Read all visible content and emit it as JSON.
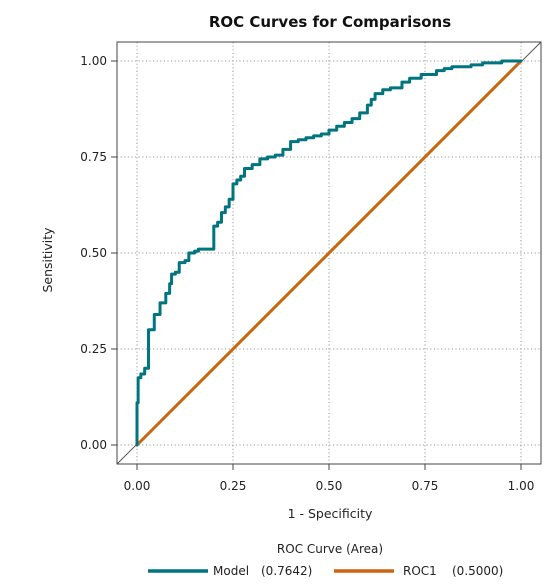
{
  "chart_data": {
    "type": "line",
    "title": "ROC Curves for Comparisons",
    "xlabel": "1 - Specificity",
    "ylabel": "Sensitivity",
    "xlim": [
      0,
      1
    ],
    "ylim": [
      0,
      1
    ],
    "xticks": [
      "0.00",
      "0.25",
      "0.50",
      "0.75",
      "1.00"
    ],
    "yticks": [
      "0.00",
      "0.25",
      "0.50",
      "0.75",
      "1.00"
    ],
    "grid": true,
    "legend_title": "ROC Curve (Area)",
    "legend_position": "bottom",
    "series": [
      {
        "name": "Model",
        "area_label": "(0.7642)",
        "color": "#00747f",
        "x": [
          0.0,
          0.0,
          0.003,
          0.003,
          0.01,
          0.01,
          0.02,
          0.02,
          0.03,
          0.03,
          0.045,
          0.045,
          0.06,
          0.06,
          0.075,
          0.075,
          0.085,
          0.085,
          0.09,
          0.09,
          0.1,
          0.1,
          0.11,
          0.11,
          0.125,
          0.125,
          0.135,
          0.135,
          0.15,
          0.15,
          0.16,
          0.16,
          0.2,
          0.2,
          0.21,
          0.21,
          0.22,
          0.22,
          0.23,
          0.23,
          0.24,
          0.24,
          0.25,
          0.25,
          0.26,
          0.26,
          0.27,
          0.27,
          0.28,
          0.28,
          0.3,
          0.3,
          0.32,
          0.32,
          0.34,
          0.34,
          0.36,
          0.36,
          0.38,
          0.38,
          0.4,
          0.4,
          0.42,
          0.42,
          0.44,
          0.44,
          0.46,
          0.46,
          0.48,
          0.48,
          0.5,
          0.5,
          0.52,
          0.52,
          0.54,
          0.54,
          0.56,
          0.56,
          0.58,
          0.58,
          0.6,
          0.6,
          0.61,
          0.61,
          0.62,
          0.62,
          0.64,
          0.64,
          0.66,
          0.66,
          0.69,
          0.69,
          0.71,
          0.71,
          0.74,
          0.74,
          0.78,
          0.78,
          0.8,
          0.8,
          0.82,
          0.82,
          0.87,
          0.87,
          0.9,
          0.9,
          0.95,
          0.95,
          1.0
        ],
        "y": [
          0.0,
          0.11,
          0.11,
          0.175,
          0.175,
          0.185,
          0.185,
          0.2,
          0.2,
          0.3,
          0.3,
          0.34,
          0.34,
          0.37,
          0.37,
          0.395,
          0.395,
          0.42,
          0.42,
          0.445,
          0.445,
          0.45,
          0.45,
          0.475,
          0.475,
          0.48,
          0.48,
          0.5,
          0.5,
          0.505,
          0.505,
          0.51,
          0.51,
          0.57,
          0.57,
          0.58,
          0.58,
          0.605,
          0.605,
          0.62,
          0.62,
          0.64,
          0.64,
          0.68,
          0.68,
          0.69,
          0.69,
          0.7,
          0.7,
          0.72,
          0.72,
          0.73,
          0.73,
          0.745,
          0.745,
          0.75,
          0.75,
          0.755,
          0.755,
          0.77,
          0.77,
          0.79,
          0.79,
          0.795,
          0.795,
          0.8,
          0.8,
          0.805,
          0.805,
          0.81,
          0.81,
          0.82,
          0.82,
          0.83,
          0.83,
          0.84,
          0.84,
          0.85,
          0.85,
          0.865,
          0.865,
          0.885,
          0.885,
          0.9,
          0.9,
          0.915,
          0.915,
          0.925,
          0.925,
          0.93,
          0.93,
          0.945,
          0.945,
          0.955,
          0.955,
          0.965,
          0.965,
          0.975,
          0.975,
          0.98,
          0.98,
          0.985,
          0.985,
          0.99,
          0.99,
          0.995,
          0.995,
          1.0,
          1.0
        ]
      },
      {
        "name": "ROC1",
        "area_label": "(0.5000)",
        "color": "#c9660f",
        "x": [
          0,
          1
        ],
        "y": [
          0,
          1
        ]
      }
    ]
  }
}
